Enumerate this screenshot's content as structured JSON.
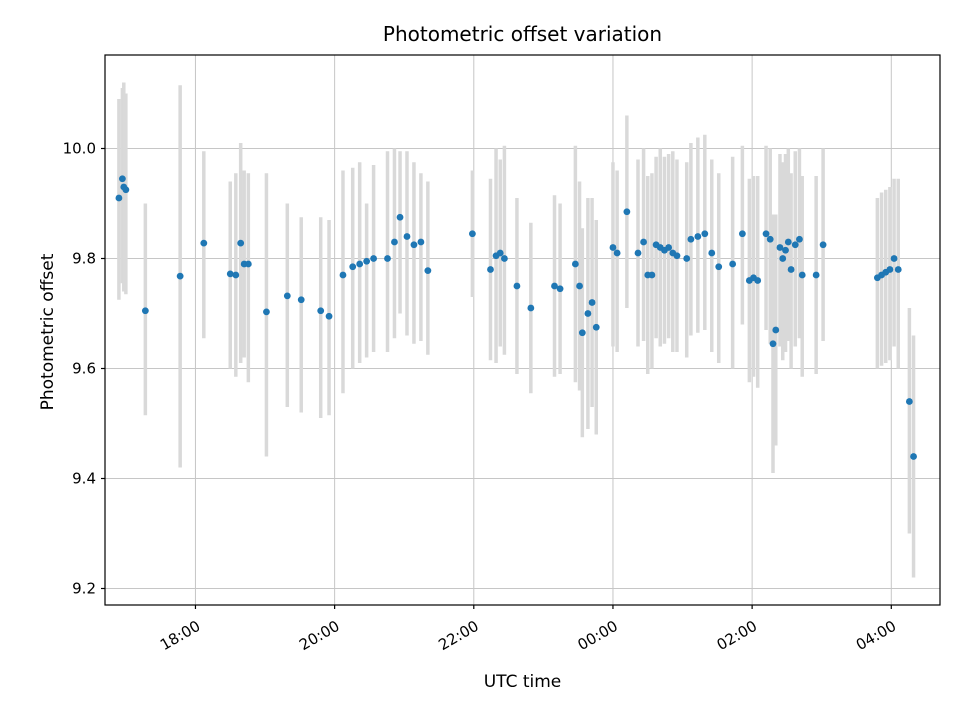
{
  "chart_data": {
    "type": "scatter",
    "title": "Photometric offset variation",
    "xlabel": "UTC time",
    "ylabel": "Photometric offset",
    "grid": true,
    "legend": "none",
    "xlim_hours": [
      16.7,
      28.7
    ],
    "ylim": [
      9.17,
      10.17
    ],
    "xticks": [
      {
        "hour": 18,
        "label": "18:00"
      },
      {
        "hour": 20,
        "label": "20:00"
      },
      {
        "hour": 22,
        "label": "22:00"
      },
      {
        "hour": 24,
        "label": "00:00"
      },
      {
        "hour": 26,
        "label": "02:00"
      },
      {
        "hour": 28,
        "label": "04:00"
      }
    ],
    "yticks": [
      {
        "value": 9.2,
        "label": "9.2"
      },
      {
        "value": 9.4,
        "label": "9.4"
      },
      {
        "value": 9.6,
        "label": "9.6"
      },
      {
        "value": 9.8,
        "label": "9.8"
      },
      {
        "value": 10.0,
        "label": "10.0"
      }
    ],
    "colors": {
      "marker": "#1f77b4",
      "errorbar": "#d9d9d9",
      "grid": "#c6c6c6",
      "axis": "#000000"
    },
    "points_columns": [
      "hour",
      "offset",
      "err_lo",
      "err_hi"
    ],
    "points": [
      [
        16.9,
        9.91,
        9.725,
        10.09
      ],
      [
        16.95,
        9.945,
        9.755,
        10.11
      ],
      [
        16.97,
        9.93,
        9.74,
        10.12
      ],
      [
        17.0,
        9.925,
        9.735,
        10.1
      ],
      [
        17.28,
        9.705,
        9.515,
        9.9
      ],
      [
        17.78,
        9.768,
        9.42,
        10.115
      ],
      [
        18.12,
        9.828,
        9.655,
        9.995
      ],
      [
        18.5,
        9.772,
        9.6,
        9.94
      ],
      [
        18.58,
        9.77,
        9.585,
        9.955
      ],
      [
        18.65,
        9.828,
        9.61,
        10.01
      ],
      [
        18.7,
        9.79,
        9.62,
        9.96
      ],
      [
        18.76,
        9.79,
        9.575,
        9.955
      ],
      [
        19.02,
        9.703,
        9.44,
        9.955
      ],
      [
        19.32,
        9.732,
        9.53,
        9.9
      ],
      [
        19.52,
        9.725,
        9.52,
        9.875
      ],
      [
        19.8,
        9.705,
        9.51,
        9.875
      ],
      [
        19.92,
        9.695,
        9.515,
        9.87
      ],
      [
        20.12,
        9.77,
        9.555,
        9.96
      ],
      [
        20.26,
        9.785,
        9.6,
        9.965
      ],
      [
        20.36,
        9.79,
        9.61,
        9.975
      ],
      [
        20.46,
        9.795,
        9.62,
        9.9
      ],
      [
        20.56,
        9.8,
        9.63,
        9.97
      ],
      [
        20.76,
        9.8,
        9.63,
        9.995
      ],
      [
        20.86,
        9.83,
        9.655,
        10.0
      ],
      [
        20.94,
        9.875,
        9.7,
        9.995
      ],
      [
        21.04,
        9.84,
        9.66,
        9.995
      ],
      [
        21.14,
        9.825,
        9.645,
        9.975
      ],
      [
        21.24,
        9.83,
        9.65,
        9.955
      ],
      [
        21.34,
        9.778,
        9.625,
        9.94
      ],
      [
        21.98,
        9.845,
        9.73,
        9.96
      ],
      [
        22.24,
        9.78,
        9.615,
        9.945
      ],
      [
        22.32,
        9.805,
        9.61,
        10.0
      ],
      [
        22.38,
        9.81,
        9.64,
        9.98
      ],
      [
        22.44,
        9.8,
        9.625,
        10.005
      ],
      [
        22.62,
        9.75,
        9.59,
        9.91
      ],
      [
        22.82,
        9.71,
        9.555,
        9.865
      ],
      [
        23.16,
        9.75,
        9.585,
        9.915
      ],
      [
        23.24,
        9.745,
        9.59,
        9.9
      ],
      [
        23.46,
        9.79,
        9.575,
        10.005
      ],
      [
        23.52,
        9.75,
        9.56,
        9.94
      ],
      [
        23.56,
        9.665,
        9.475,
        9.855
      ],
      [
        23.64,
        9.7,
        9.49,
        9.91
      ],
      [
        23.7,
        9.72,
        9.53,
        9.91
      ],
      [
        23.76,
        9.675,
        9.48,
        9.87
      ],
      [
        24.0,
        9.82,
        9.64,
        9.975
      ],
      [
        24.06,
        9.81,
        9.63,
        9.96
      ],
      [
        24.2,
        9.885,
        9.71,
        10.06
      ],
      [
        24.36,
        9.81,
        9.64,
        9.98
      ],
      [
        24.44,
        9.83,
        9.65,
        10.0
      ],
      [
        24.5,
        9.77,
        9.59,
        9.95
      ],
      [
        24.56,
        9.77,
        9.6,
        9.955
      ],
      [
        24.62,
        9.825,
        9.655,
        9.985
      ],
      [
        24.68,
        9.82,
        9.64,
        10.0
      ],
      [
        24.74,
        9.815,
        9.645,
        9.985
      ],
      [
        24.8,
        9.82,
        9.655,
        9.99
      ],
      [
        24.86,
        9.81,
        9.63,
        9.995
      ],
      [
        24.92,
        9.805,
        9.63,
        9.98
      ],
      [
        25.06,
        9.8,
        9.62,
        9.975
      ],
      [
        25.12,
        9.835,
        9.66,
        10.01
      ],
      [
        25.22,
        9.84,
        9.665,
        10.02
      ],
      [
        25.32,
        9.845,
        9.67,
        10.025
      ],
      [
        25.42,
        9.81,
        9.63,
        9.98
      ],
      [
        25.52,
        9.785,
        9.61,
        9.955
      ],
      [
        25.72,
        9.79,
        9.6,
        9.985
      ],
      [
        25.86,
        9.845,
        9.68,
        10.005
      ],
      [
        25.96,
        9.76,
        9.575,
        9.945
      ],
      [
        26.02,
        9.765,
        9.585,
        9.95
      ],
      [
        26.08,
        9.76,
        9.565,
        9.95
      ],
      [
        26.2,
        9.845,
        9.67,
        10.005
      ],
      [
        26.26,
        9.835,
        9.645,
        10.0
      ],
      [
        26.3,
        9.645,
        9.41,
        9.88
      ],
      [
        26.34,
        9.67,
        9.46,
        9.88
      ],
      [
        26.4,
        9.82,
        9.64,
        9.99
      ],
      [
        26.44,
        9.8,
        9.615,
        9.975
      ],
      [
        26.48,
        9.815,
        9.63,
        9.99
      ],
      [
        26.52,
        9.83,
        9.65,
        10.0
      ],
      [
        26.56,
        9.78,
        9.6,
        9.955
      ],
      [
        26.62,
        9.825,
        9.64,
        9.995
      ],
      [
        26.68,
        9.835,
        9.655,
        10.0
      ],
      [
        26.72,
        9.77,
        9.585,
        9.95
      ],
      [
        26.92,
        9.77,
        9.59,
        9.95
      ],
      [
        27.02,
        9.825,
        9.65,
        10.0
      ],
      [
        27.8,
        9.765,
        9.6,
        9.91
      ],
      [
        27.86,
        9.77,
        9.605,
        9.92
      ],
      [
        27.92,
        9.775,
        9.61,
        9.925
      ],
      [
        27.98,
        9.78,
        9.615,
        9.93
      ],
      [
        28.04,
        9.8,
        9.64,
        9.945
      ],
      [
        28.1,
        9.78,
        9.6,
        9.945
      ],
      [
        28.26,
        9.54,
        9.3,
        9.71
      ],
      [
        28.32,
        9.44,
        9.22,
        9.66
      ]
    ]
  }
}
